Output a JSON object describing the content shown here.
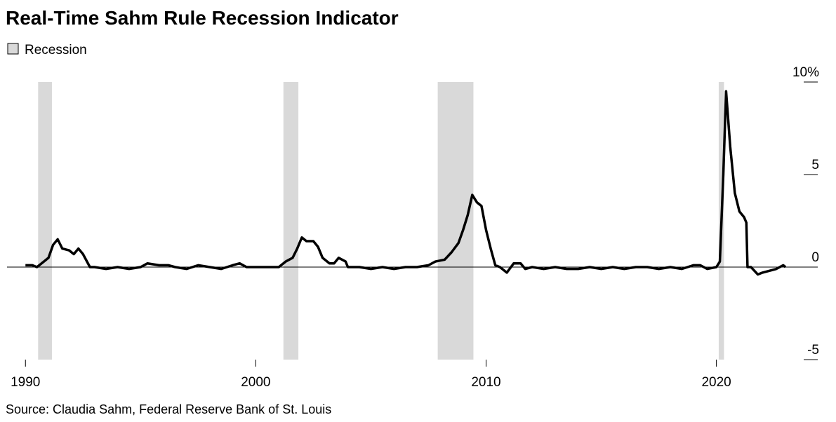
{
  "chart_data": {
    "type": "line",
    "title": "Real-Time Sahm Rule Recession Indicator",
    "source": "Source: Claudia Sahm, Federal Reserve Bank of St. Louis",
    "legend": "Recession",
    "recession_color": "#d9d9d9",
    "recessions": [
      [
        1990.55,
        1991.15
      ],
      [
        2001.2,
        2001.85
      ],
      [
        2007.9,
        2009.45
      ],
      [
        2020.1,
        2020.33
      ]
    ],
    "xlim": [
      1989.2,
      2024.4
    ],
    "xticks": [
      1990,
      2000,
      2010,
      2020
    ],
    "ylim": [
      -5,
      10
    ],
    "yticks": [
      {
        "value": 10,
        "label": "10%"
      },
      5,
      0,
      -5
    ],
    "series": [
      {
        "name": "Sahm Rule",
        "color": "#000000",
        "x": [
          1990.0,
          1990.3,
          1990.5,
          1990.8,
          1991.0,
          1991.2,
          1991.4,
          1991.6,
          1991.9,
          1992.1,
          1992.3,
          1992.5,
          1992.8,
          1993.0,
          1993.5,
          1994.0,
          1994.5,
          1995.0,
          1995.3,
          1995.8,
          1996.2,
          1996.5,
          1997.0,
          1997.5,
          1998.0,
          1998.5,
          1999.0,
          1999.3,
          1999.6,
          2000.0,
          2000.5,
          2001.0,
          2001.3,
          2001.6,
          2001.8,
          2002.0,
          2002.2,
          2002.5,
          2002.7,
          2002.9,
          2003.2,
          2003.4,
          2003.6,
          2003.9,
          2004.0,
          2004.5,
          2005.0,
          2005.5,
          2006.0,
          2006.5,
          2007.0,
          2007.5,
          2007.8,
          2008.2,
          2008.5,
          2008.8,
          2009.0,
          2009.2,
          2009.4,
          2009.6,
          2009.8,
          2010.0,
          2010.2,
          2010.4,
          2010.6,
          2010.9,
          2011.2,
          2011.5,
          2011.7,
          2012.0,
          2012.5,
          2013.0,
          2013.5,
          2014.0,
          2014.5,
          2015.0,
          2015.5,
          2016.0,
          2016.5,
          2017.0,
          2017.5,
          2018.0,
          2018.5,
          2019.0,
          2019.3,
          2019.6,
          2020.0,
          2020.15,
          2020.3,
          2020.42,
          2020.6,
          2020.8,
          2021.0,
          2021.2,
          2021.3,
          2021.35,
          2021.5,
          2021.8,
          2022.0,
          2022.3,
          2022.6,
          2022.9,
          2023.0
        ],
        "values": [
          0.1,
          0.1,
          0.0,
          0.3,
          0.5,
          1.2,
          1.5,
          1.0,
          0.9,
          0.7,
          1.0,
          0.7,
          0.0,
          0.0,
          -0.1,
          0.0,
          -0.1,
          0.0,
          0.2,
          0.1,
          0.1,
          0.0,
          -0.1,
          0.1,
          0.0,
          -0.1,
          0.1,
          0.2,
          0.0,
          0.0,
          0.0,
          0.0,
          0.3,
          0.5,
          1.0,
          1.6,
          1.4,
          1.4,
          1.1,
          0.5,
          0.2,
          0.2,
          0.5,
          0.3,
          0.0,
          0.0,
          -0.1,
          0.0,
          -0.1,
          0.0,
          0.0,
          0.1,
          0.3,
          0.4,
          0.8,
          1.3,
          2.0,
          2.8,
          3.9,
          3.5,
          3.3,
          2.0,
          1.0,
          0.1,
          0.0,
          -0.3,
          0.2,
          0.2,
          -0.1,
          0.0,
          -0.1,
          0.0,
          -0.1,
          -0.1,
          0.0,
          -0.1,
          0.0,
          -0.1,
          0.0,
          0.0,
          -0.1,
          0.0,
          -0.1,
          0.1,
          0.1,
          -0.1,
          0.0,
          0.3,
          5.0,
          9.5,
          6.5,
          4.0,
          3.0,
          2.7,
          2.4,
          0.0,
          0.0,
          -0.4,
          -0.3,
          -0.2,
          -0.1,
          0.1,
          0.0
        ]
      }
    ]
  }
}
